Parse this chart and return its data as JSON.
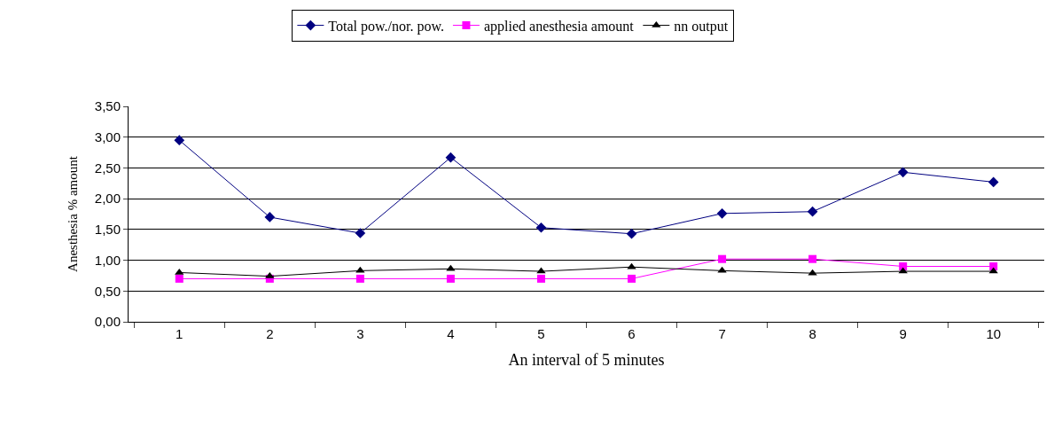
{
  "chart_data": {
    "type": "line",
    "xlabel": "An interval of 5 minutes",
    "ylabel": "Anesthesia % amount",
    "categories": [
      "1",
      "2",
      "3",
      "4",
      "5",
      "6",
      "7",
      "8",
      "9",
      "10"
    ],
    "series": [
      {
        "name": "Total pow./nor. pow.",
        "color": "#000080",
        "marker": "diamond",
        "values": [
          2.95,
          1.7,
          1.44,
          2.67,
          1.53,
          1.43,
          1.76,
          1.79,
          2.43,
          2.27
        ]
      },
      {
        "name": "applied anesthesia amount",
        "color": "#ff00ff",
        "marker": "square",
        "values": [
          0.7,
          0.7,
          0.7,
          0.7,
          0.7,
          0.7,
          1.02,
          1.02,
          0.9,
          0.9
        ]
      },
      {
        "name": "nn output",
        "color": "#000000",
        "marker": "triangle",
        "values": [
          0.8,
          0.74,
          0.83,
          0.86,
          0.82,
          0.89,
          0.83,
          0.79,
          0.82,
          0.82
        ]
      }
    ],
    "ylim": [
      0,
      3.5
    ],
    "yticks": [
      {
        "value": 0,
        "label": "0,00"
      },
      {
        "value": 0.5,
        "label": "0,50"
      },
      {
        "value": 1,
        "label": "1,00"
      },
      {
        "value": 1.5,
        "label": "1,50"
      },
      {
        "value": 2,
        "label": "2,00"
      },
      {
        "value": 2.5,
        "label": "2,50"
      },
      {
        "value": 3,
        "label": "3,00"
      },
      {
        "value": 3.5,
        "label": "3,50"
      }
    ],
    "grid": "y",
    "legend": "top",
    "line_style": "solid"
  }
}
